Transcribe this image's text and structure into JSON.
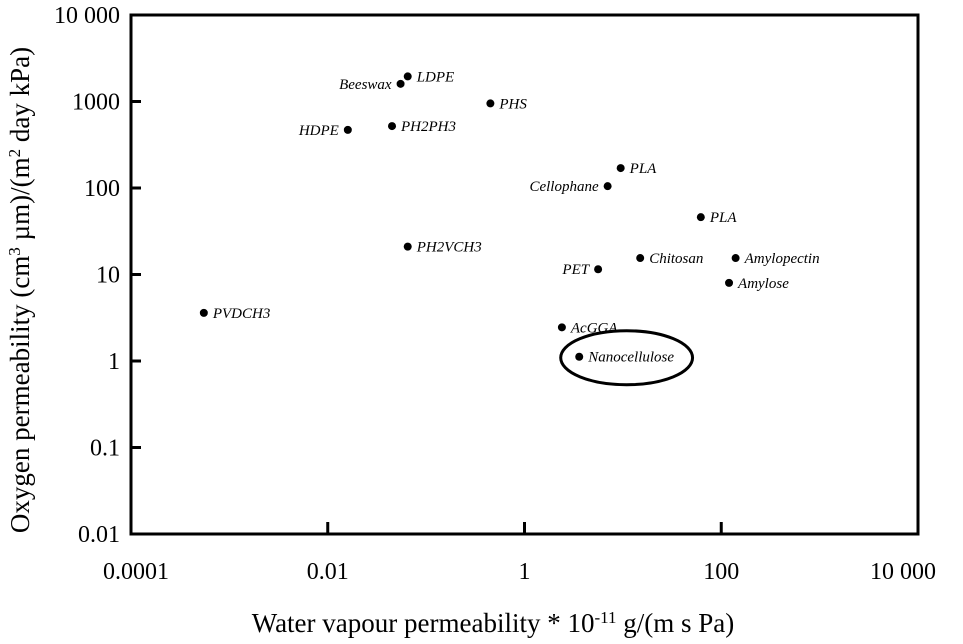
{
  "chart_data": {
    "type": "scatter",
    "title": "",
    "xlabel": {
      "prefix": "Water vapour permeability * 10",
      "exponent": "-11",
      "suffix": " g/(m s Pa)"
    },
    "ylabel": {
      "prefix": "Oxygen permeability (cm",
      "exponent": "3",
      "middle": " µm)/(m",
      "exponent2": "2",
      "suffix": " day kPa)"
    },
    "x_scale": "log",
    "y_scale": "log",
    "xlim": [
      0.0001,
      10000
    ],
    "ylim": [
      0.01,
      10000
    ],
    "x_ticks": [
      {
        "value": 0.0001,
        "label": "0.0001"
      },
      {
        "value": 0.01,
        "label": "0.01"
      },
      {
        "value": 1,
        "label": "1"
      },
      {
        "value": 100,
        "label": "100"
      },
      {
        "value": 10000,
        "label": "10 000"
      }
    ],
    "y_ticks": [
      {
        "value": 0.01,
        "label": "0.01"
      },
      {
        "value": 0.1,
        "label": "0.1"
      },
      {
        "value": 1,
        "label": "1"
      },
      {
        "value": 10,
        "label": "10"
      },
      {
        "value": 100,
        "label": "100"
      },
      {
        "value": 1000,
        "label": "1000"
      },
      {
        "value": 10000,
        "label": "10 000"
      }
    ],
    "grid": false,
    "points": [
      {
        "label": "Beeswax",
        "x": 0.055,
        "y": 1600,
        "label_side": "left"
      },
      {
        "label": "LDPE",
        "x": 0.065,
        "y": 1950,
        "label_side": "right"
      },
      {
        "label": "PHS",
        "x": 0.45,
        "y": 950,
        "label_side": "right"
      },
      {
        "label": "HDPE",
        "x": 0.016,
        "y": 470,
        "label_side": "left"
      },
      {
        "label": "PH2PH3",
        "x": 0.045,
        "y": 520,
        "label_side": "right"
      },
      {
        "label": "PLA",
        "x": 9.5,
        "y": 170,
        "label_side": "right"
      },
      {
        "label": "Cellophane",
        "x": 7.0,
        "y": 105,
        "label_side": "left"
      },
      {
        "label": "PLA",
        "x": 62,
        "y": 46,
        "label_side": "right"
      },
      {
        "label": "PH2VCH3",
        "x": 0.065,
        "y": 21,
        "label_side": "right"
      },
      {
        "label": "Chitosan",
        "x": 15,
        "y": 15.5,
        "label_side": "right"
      },
      {
        "label": "Amylopectin",
        "x": 140,
        "y": 15.5,
        "label_side": "right"
      },
      {
        "label": "PET",
        "x": 5.6,
        "y": 11.5,
        "label_side": "left"
      },
      {
        "label": "Amylose",
        "x": 120,
        "y": 8,
        "label_side": "right"
      },
      {
        "label": "PVDCH3",
        "x": 0.00055,
        "y": 3.6,
        "label_side": "right"
      },
      {
        "label": "AcGGA",
        "x": 2.4,
        "y": 2.45,
        "label_side": "right"
      },
      {
        "label": "Nanocellulose",
        "x": 3.6,
        "y": 1.12,
        "label_side": "right",
        "highlighted": true
      }
    ]
  }
}
